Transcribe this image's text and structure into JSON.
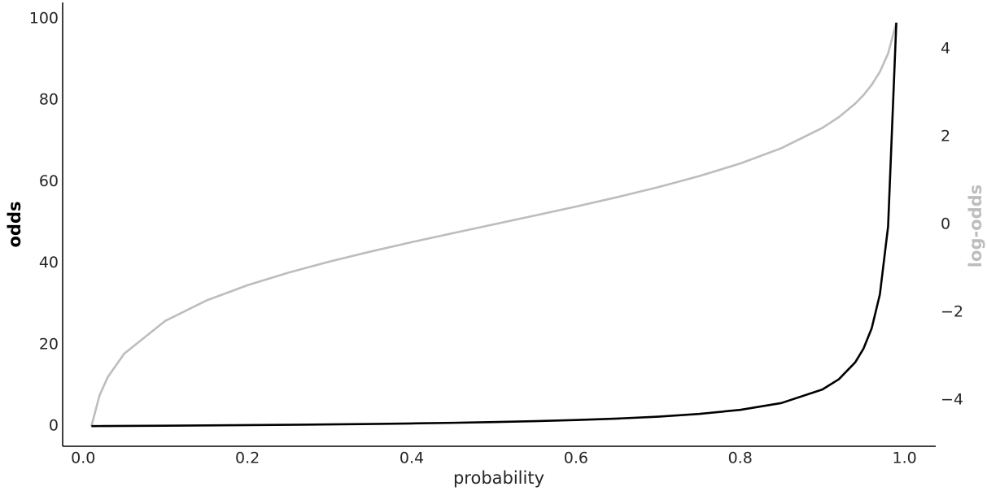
{
  "chart_data": {
    "type": "line",
    "xlabel": "probability",
    "ylabel": "odds",
    "y2label": "log-odds",
    "x": [
      0.01,
      0.02,
      0.03,
      0.05,
      0.1,
      0.15,
      0.2,
      0.25,
      0.3,
      0.35,
      0.4,
      0.45,
      0.5,
      0.55,
      0.6,
      0.65,
      0.7,
      0.75,
      0.8,
      0.85,
      0.9,
      0.92,
      0.94,
      0.95,
      0.96,
      0.97,
      0.98,
      0.99
    ],
    "series": [
      {
        "name": "odds",
        "color": "#000000",
        "values": [
          0.0101,
          0.0204,
          0.0309,
          0.0526,
          0.1111,
          0.1765,
          0.25,
          0.3333,
          0.4286,
          0.5385,
          0.6667,
          0.8182,
          1,
          1.2222,
          1.5,
          1.8571,
          2.3333,
          3,
          4,
          5.6667,
          9,
          11.5,
          15.667,
          19,
          24,
          32.333,
          49,
          99
        ]
      },
      {
        "name": "log-odds",
        "color": "#bdbdbd",
        "axis": "y2",
        "values": [
          -4.595,
          -3.892,
          -3.476,
          -2.944,
          -2.197,
          -1.735,
          -1.386,
          -1.099,
          -0.847,
          -0.619,
          -0.405,
          -0.201,
          0,
          0.201,
          0.405,
          0.619,
          0.847,
          1.099,
          1.386,
          1.735,
          2.197,
          2.442,
          2.752,
          2.944,
          3.178,
          3.476,
          3.892,
          4.595
        ]
      }
    ],
    "xlim": [
      -0.025,
      1.038
    ],
    "xticks": [
      {
        "value": 0,
        "label": "0.0"
      },
      0.2,
      0.4,
      0.6,
      0.8,
      {
        "value": 1,
        "label": "1.0"
      }
    ],
    "ylim": [
      -4.94,
      103.96
    ],
    "yticks": [
      0,
      20,
      40,
      60,
      80,
      100
    ],
    "y2lim": [
      -5.055,
      5.055
    ],
    "y2ticks": [
      {
        "value": -4,
        "label": "−4"
      },
      {
        "value": -2,
        "label": "−2"
      },
      0,
      2,
      4
    ],
    "grid": false
  }
}
